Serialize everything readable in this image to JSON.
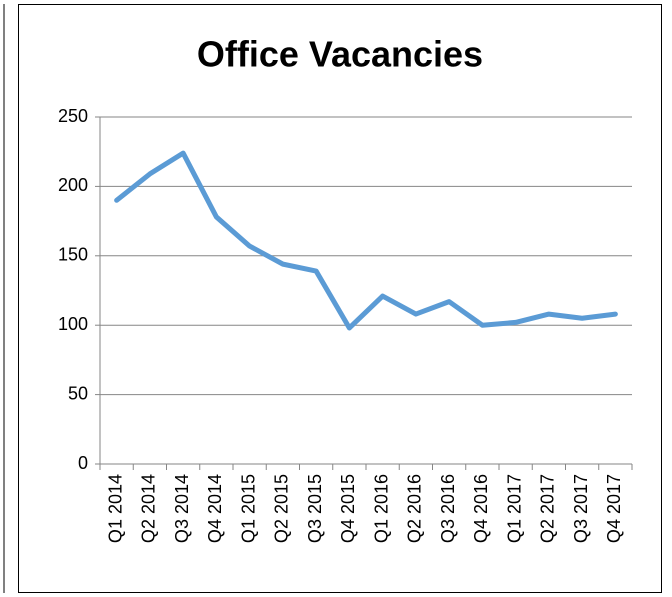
{
  "chart_data": {
    "type": "line",
    "title": "Office Vacancies",
    "categories": [
      "Q1 2014",
      "Q2 2014",
      "Q3 2014",
      "Q4 2014",
      "Q1 2015",
      "Q2 2015",
      "Q3 2015",
      "Q4 2015",
      "Q1 2016",
      "Q2 2016",
      "Q3 2016",
      "Q4 2016",
      "Q1 2017",
      "Q2 2017",
      "Q3 2017",
      "Q4 2017"
    ],
    "values": [
      190,
      209,
      224,
      178,
      157,
      144,
      139,
      98,
      121,
      108,
      117,
      100,
      102,
      108,
      105,
      108
    ],
    "color": "#5b9bd5",
    "ylim": [
      0,
      250
    ],
    "yticks": [
      0,
      50,
      100,
      150,
      200,
      250
    ],
    "grid": true
  }
}
